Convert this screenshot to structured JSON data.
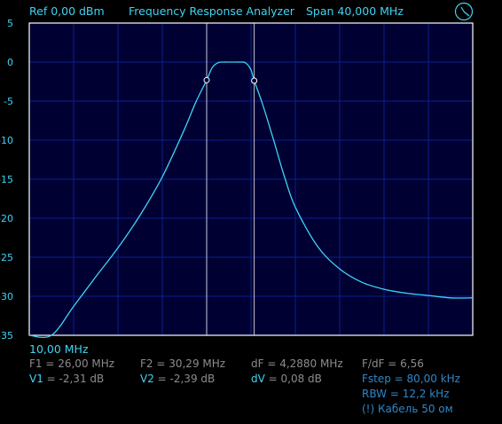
{
  "header": {
    "ref": "Ref  0,00 dBm",
    "title": "Frequency Response Analyzer",
    "span": "Span 40,000 MHz",
    "mode_icon": "clock-gauge-icon"
  },
  "axis": {
    "start_freq_label": "10,00 MHz",
    "ytick_labels": [
      "5",
      "0",
      "-5",
      "-10",
      "-15",
      "-20",
      "-25",
      "-30",
      "-35"
    ]
  },
  "readouts": {
    "f1": "F1 = 26,00 MHz",
    "f2": "F2 = 30,29 MHz",
    "df": "dF = 4,2880 MHz",
    "f_df": "F/dF = 6,56",
    "v1_label": "V1",
    "v1_value": " = -2,31 dB",
    "v2_label": "V2",
    "v2_value": " = -2,39 dB",
    "dv_label": "dV",
    "dv_value": " = 0,08 dB",
    "fstep": "Fstep = 80,00 kHz",
    "rbw": "RBW = 12,2 kHz",
    "cable": "(!) Кабель 50 ом"
  },
  "colors": {
    "background": "#000000",
    "plot_background": "#000033",
    "grid": "#0d1f8c",
    "frame": "#ffffff",
    "trace": "#3fd3f4",
    "marker": "#ffffff"
  },
  "chart_data": {
    "type": "line",
    "title": "Frequency Response Analyzer",
    "xlabel": "",
    "ylabel": "",
    "xlim": [
      10,
      50
    ],
    "ylim": [
      -35,
      5
    ],
    "yticks": [
      5,
      0,
      -5,
      -10,
      -15,
      -20,
      -25,
      -30,
      -35
    ],
    "grid": true,
    "series": [
      {
        "x": [
          10,
          12.0,
          14,
          16,
          18,
          20,
          22,
          24,
          25,
          26,
          26.5,
          27,
          27.5,
          28,
          28.5,
          29,
          29.5,
          30,
          30.29,
          31,
          32,
          33,
          34,
          36,
          38,
          40,
          42,
          44,
          46,
          48,
          50
        ],
        "y": [
          -35,
          -35,
          -31.3,
          -27.5,
          -23.8,
          -19.6,
          -14.7,
          -8.6,
          -5.2,
          -2.31,
          -0.7,
          -0.1,
          0,
          0,
          0,
          0,
          -0.1,
          -1.0,
          -2.39,
          -5.2,
          -9.8,
          -14.6,
          -18.6,
          -23.6,
          -26.5,
          -28.2,
          -29.1,
          -29.6,
          -29.9,
          -30.2,
          -30.2
        ]
      }
    ],
    "markers": [
      {
        "label": "F1",
        "x": 26.0,
        "y": -2.31
      },
      {
        "label": "F2",
        "x": 30.29,
        "y": -2.39
      }
    ]
  }
}
